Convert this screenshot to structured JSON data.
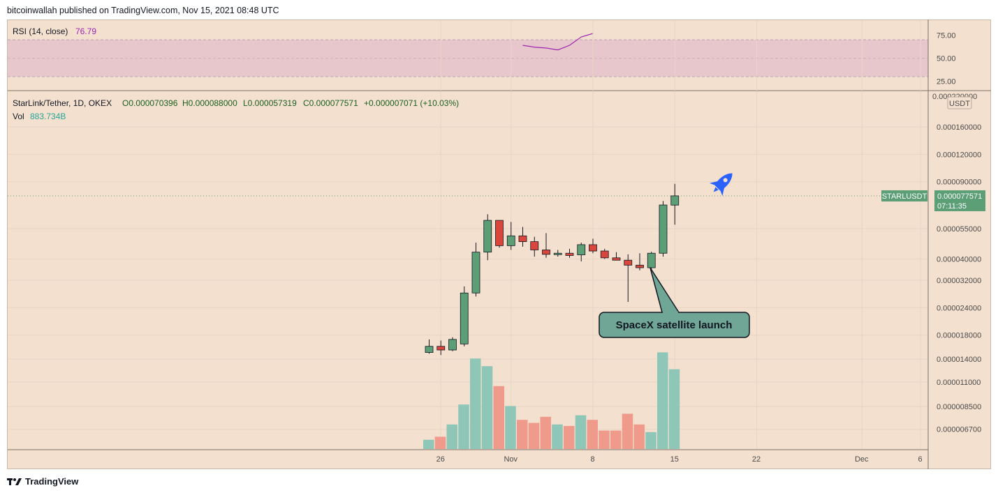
{
  "header": {
    "text": "bitcoinwallah published on TradingView.com, Nov 15, 2021 08:48 UTC"
  },
  "footer": {
    "brand": "TradingView",
    "logo_icon": "tradingview-logo-icon"
  },
  "rsi": {
    "label": "RSI (14, close)",
    "value": "76.79",
    "color": "#9c27b0",
    "levels": [
      75,
      50,
      25
    ],
    "level_labels": [
      "75.00",
      "50.00",
      "25.00"
    ],
    "band": [
      30,
      70
    ],
    "points": [
      {
        "day": 8,
        "rsi": 64
      },
      {
        "day": 9,
        "rsi": 62
      },
      {
        "day": 10,
        "rsi": 61
      },
      {
        "day": 11,
        "rsi": 59
      },
      {
        "day": 12,
        "rsi": 64
      },
      {
        "day": 13,
        "rsi": 73
      },
      {
        "day": 14,
        "rsi": 76.79
      }
    ]
  },
  "legend": {
    "symbol": "StarLink/Tether, 1D, OKEX",
    "open": "O0.000070396",
    "high": "H0.000088000",
    "low": "L0.000057319",
    "close": "C0.000077571",
    "change": "+0.000007071 (+10.03%)",
    "vol_label": "Vol",
    "vol_value": "883.734B"
  },
  "price_axis": {
    "currency": "USDT",
    "top_label": "0.000220000",
    "ticks": [
      "0.000160000",
      "0.000120000",
      "0.000090000",
      "0.000055000",
      "0.000040000",
      "0.000032000",
      "0.000024000",
      "0.000018000",
      "0.000014000",
      "0.000011000",
      "0.000008500",
      "0.000006700"
    ],
    "current_symbol": "STARLUSDT",
    "current_price": "0.000077571",
    "countdown": "07:11:35",
    "up_color": "#5c9e76",
    "down_color": "#d9473c"
  },
  "time_axis": {
    "ticks": [
      {
        "day": 1,
        "label": "26"
      },
      {
        "day": 7,
        "label": "Nov"
      },
      {
        "day": 14,
        "label": "8"
      },
      {
        "day": 21,
        "label": "15"
      },
      {
        "day": 28,
        "label": "22"
      },
      {
        "day": 37,
        "label": "Dec"
      },
      {
        "day": 42,
        "label": "6"
      }
    ]
  },
  "annotation": {
    "text": "SpaceX satellite launch",
    "icon": "rocket-icon"
  },
  "chart_data": {
    "type": "candlestick",
    "scale": "log",
    "x_unit": "day index (0 = Oct 25, 2021)",
    "candles": [
      {
        "day": 0,
        "o": 1.5e-05,
        "h": 1.72e-05,
        "l": 1.48e-05,
        "c": 1.6e-05
      },
      {
        "day": 1,
        "o": 1.6e-05,
        "h": 1.7e-05,
        "l": 1.46e-05,
        "c": 1.54e-05
      },
      {
        "day": 2,
        "o": 1.54e-05,
        "h": 1.76e-05,
        "l": 1.52e-05,
        "c": 1.72e-05
      },
      {
        "day": 3,
        "o": 1.64e-05,
        "h": 3e-05,
        "l": 1.6e-05,
        "c": 2.8e-05
      },
      {
        "day": 4,
        "o": 2.8e-05,
        "h": 4.75e-05,
        "l": 2.7e-05,
        "c": 4.3e-05
      },
      {
        "day": 5,
        "o": 4.3e-05,
        "h": 6.4e-05,
        "l": 3.95e-05,
        "c": 6e-05
      },
      {
        "day": 6,
        "o": 6e-05,
        "h": 6e-05,
        "l": 4.5e-05,
        "c": 4.6e-05
      },
      {
        "day": 7,
        "o": 4.6e-05,
        "h": 5.9e-05,
        "l": 4.4e-05,
        "c": 5.1e-05
      },
      {
        "day": 8,
        "o": 5.1e-05,
        "h": 5.6e-05,
        "l": 4.55e-05,
        "c": 4.8e-05
      },
      {
        "day": 9,
        "o": 4.8e-05,
        "h": 5.05e-05,
        "l": 4.1e-05,
        "c": 4.4e-05
      },
      {
        "day": 10,
        "o": 4.4e-05,
        "h": 5.25e-05,
        "l": 4.05e-05,
        "c": 4.2e-05
      },
      {
        "day": 11,
        "o": 4.2e-05,
        "h": 4.4e-05,
        "l": 4.1e-05,
        "c": 4.25e-05
      },
      {
        "day": 12,
        "o": 4.25e-05,
        "h": 4.45e-05,
        "l": 4.05e-05,
        "c": 4.15e-05
      },
      {
        "day": 13,
        "o": 4.18e-05,
        "h": 4.75e-05,
        "l": 3.9e-05,
        "c": 4.65e-05
      },
      {
        "day": 14,
        "o": 4.65e-05,
        "h": 4.95e-05,
        "l": 4.25e-05,
        "c": 4.35e-05
      },
      {
        "day": 15,
        "o": 4.35e-05,
        "h": 4.45e-05,
        "l": 4e-05,
        "c": 4.05e-05
      },
      {
        "day": 16,
        "o": 4.05e-05,
        "h": 4.3e-05,
        "l": 3.95e-05,
        "c": 3.95e-05
      },
      {
        "day": 17,
        "o": 3.95e-05,
        "h": 4.2e-05,
        "l": 2.55e-05,
        "c": 3.75e-05
      },
      {
        "day": 18,
        "o": 3.75e-05,
        "h": 4.25e-05,
        "l": 3.55e-05,
        "c": 3.65e-05
      },
      {
        "day": 19,
        "o": 3.65e-05,
        "h": 4.32e-05,
        "l": 3.6e-05,
        "c": 4.25e-05
      },
      {
        "day": 20,
        "o": 4.25e-05,
        "h": 7.35e-05,
        "l": 4.1e-05,
        "c": 7.05e-05
      },
      {
        "day": 21,
        "o": 7.04e-05,
        "h": 8.8e-05,
        "l": 5.73e-05,
        "c": 7.76e-05
      }
    ],
    "volume": [
      {
        "day": 0,
        "v": 0.06,
        "up": true
      },
      {
        "day": 1,
        "v": 0.08,
        "up": false
      },
      {
        "day": 2,
        "v": 0.16,
        "up": true
      },
      {
        "day": 3,
        "v": 0.29,
        "up": true
      },
      {
        "day": 4,
        "v": 0.59,
        "up": true
      },
      {
        "day": 5,
        "v": 0.54,
        "up": true
      },
      {
        "day": 6,
        "v": 0.41,
        "up": false
      },
      {
        "day": 7,
        "v": 0.28,
        "up": true
      },
      {
        "day": 8,
        "v": 0.19,
        "up": false
      },
      {
        "day": 9,
        "v": 0.17,
        "up": false
      },
      {
        "day": 10,
        "v": 0.21,
        "up": false
      },
      {
        "day": 11,
        "v": 0.16,
        "up": true
      },
      {
        "day": 12,
        "v": 0.15,
        "up": false
      },
      {
        "day": 13,
        "v": 0.22,
        "up": true
      },
      {
        "day": 14,
        "v": 0.19,
        "up": false
      },
      {
        "day": 15,
        "v": 0.12,
        "up": false
      },
      {
        "day": 16,
        "v": 0.12,
        "up": false
      },
      {
        "day": 17,
        "v": 0.23,
        "up": false
      },
      {
        "day": 18,
        "v": 0.16,
        "up": false
      },
      {
        "day": 19,
        "v": 0.11,
        "up": true
      },
      {
        "day": 20,
        "v": 0.63,
        "up": true
      },
      {
        "day": 21,
        "v": 0.52,
        "up": true
      }
    ]
  }
}
